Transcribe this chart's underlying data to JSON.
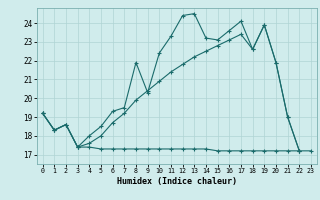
{
  "bg_color": "#d0ecec",
  "grid_color": "#b0d4d4",
  "line_color": "#1a6b6b",
  "xlabel": "Humidex (Indice chaleur)",
  "ylim": [
    16.5,
    24.8
  ],
  "xlim": [
    -0.5,
    23.5
  ],
  "yticks": [
    17,
    18,
    19,
    20,
    21,
    22,
    23,
    24
  ],
  "xticks": [
    0,
    1,
    2,
    3,
    4,
    5,
    6,
    7,
    8,
    9,
    10,
    11,
    12,
    13,
    14,
    15,
    16,
    17,
    18,
    19,
    20,
    21,
    22,
    23
  ],
  "line1_x": [
    0,
    1,
    2,
    3,
    4,
    5,
    6,
    7,
    8,
    9,
    10,
    11,
    12,
    13,
    14,
    15,
    16,
    17,
    18,
    19,
    20,
    21,
    22
  ],
  "line1_y": [
    19.2,
    18.3,
    18.6,
    17.4,
    18.0,
    18.5,
    19.3,
    19.5,
    21.9,
    20.3,
    22.4,
    23.3,
    24.4,
    24.5,
    23.2,
    23.1,
    23.6,
    24.1,
    22.6,
    23.9,
    21.9,
    19.0,
    17.2
  ],
  "line2_x": [
    0,
    1,
    2,
    3,
    4,
    5,
    6,
    7,
    8,
    9,
    10,
    11,
    12,
    13,
    14,
    15,
    16,
    17,
    18,
    19,
    20,
    21,
    22,
    23
  ],
  "line2_y": [
    19.2,
    18.3,
    18.6,
    17.4,
    17.4,
    17.3,
    17.3,
    17.3,
    17.3,
    17.3,
    17.3,
    17.3,
    17.3,
    17.3,
    17.3,
    17.2,
    17.2,
    17.2,
    17.2,
    17.2,
    17.2,
    17.2,
    17.2,
    17.2
  ],
  "line3_x": [
    0,
    1,
    2,
    3,
    4,
    5,
    6,
    7,
    8,
    9,
    10,
    11,
    12,
    13,
    14,
    15,
    16,
    17,
    18,
    19,
    20,
    21,
    22
  ],
  "line3_y": [
    19.2,
    18.3,
    18.6,
    17.4,
    17.6,
    18.0,
    18.7,
    19.2,
    19.9,
    20.4,
    20.9,
    21.4,
    21.8,
    22.2,
    22.5,
    22.8,
    23.1,
    23.4,
    22.6,
    23.9,
    21.9,
    19.0,
    17.2
  ]
}
